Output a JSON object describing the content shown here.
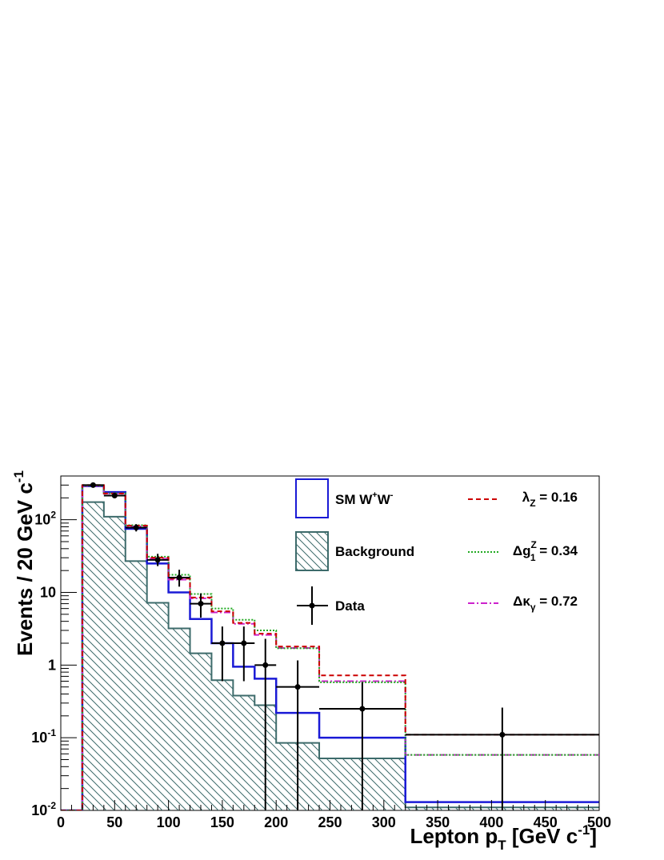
{
  "chart_data": {
    "type": "histogram",
    "xlabel": "Lepton p_T [GeV c^-1]",
    "xlabel_main": "Lepton p",
    "xlabel_sub": "T",
    "xlabel_unit": " [GeV c",
    "xlabel_unit_sup": "-1",
    "xlabel_close": "]",
    "ylabel": "Events / 20 GeV c^-1",
    "ylabel_main": "Events / 20 GeV c",
    "ylabel_sup": "-1",
    "yscale": "log",
    "xlim": [
      0,
      500
    ],
    "ylim": [
      0.01,
      400
    ],
    "x_ticks": [
      "0",
      "50",
      "100",
      "150",
      "200",
      "250",
      "300",
      "350",
      "400",
      "450",
      "500"
    ],
    "y_ticks": [
      {
        "value": 0.01,
        "base": "10",
        "exp": "-2"
      },
      {
        "value": 0.1,
        "base": "10",
        "exp": "-1"
      },
      {
        "value": 1,
        "base": "1",
        "exp": ""
      },
      {
        "value": 10,
        "base": "10",
        "exp": ""
      },
      {
        "value": 100,
        "base": "10",
        "exp": "2"
      }
    ],
    "bin_edges": [
      0,
      20,
      40,
      60,
      80,
      100,
      120,
      140,
      160,
      180,
      200,
      240,
      320,
      500
    ],
    "series": [
      {
        "name": "SM W+W-",
        "style": "solid",
        "color": "#1a1ad6",
        "values": [
          0.01,
          290,
          240,
          75,
          25,
          10,
          4.3,
          2.0,
          0.95,
          0.65,
          0.22,
          0.1,
          0.013
        ]
      },
      {
        "name": "Background",
        "style": "hatched",
        "color": "#3d6b6b",
        "values": [
          0.01,
          175,
          110,
          27,
          7.2,
          3.2,
          1.45,
          0.62,
          0.38,
          0.28,
          0.085,
          0.052,
          0.011
        ]
      },
      {
        "name": "λZ = 0.16",
        "style": "dashed",
        "color": "#cc0000",
        "values": [
          0.01,
          300,
          230,
          83,
          30,
          15.5,
          8.5,
          5.5,
          3.8,
          2.7,
          1.8,
          0.72,
          0.11
        ]
      },
      {
        "name": "Δg1Z = 0.34",
        "style": "dotted",
        "color": "#22aa22",
        "values": [
          0.01,
          295,
          232,
          84,
          31,
          17.5,
          9.5,
          6.0,
          4.2,
          3.0,
          1.7,
          0.58,
          0.058
        ]
      },
      {
        "name": "Δκγ = 0.72",
        "style": "dashdot",
        "color": "#cc22cc",
        "values": [
          0.01,
          293,
          228,
          81,
          29,
          15,
          8.3,
          5.3,
          3.7,
          2.6,
          1.72,
          0.6,
          0.058
        ]
      }
    ],
    "data_points": {
      "name": "Data",
      "points": [
        {
          "x": 30,
          "y": 300,
          "xerr": 10,
          "ylo": 283,
          "yhi": 317
        },
        {
          "x": 50,
          "y": 215,
          "xerr": 10,
          "ylo": 201,
          "yhi": 230
        },
        {
          "x": 70,
          "y": 78,
          "xerr": 10,
          "ylo": 69,
          "yhi": 87
        },
        {
          "x": 90,
          "y": 28,
          "xerr": 10,
          "ylo": 23,
          "yhi": 34
        },
        {
          "x": 110,
          "y": 16,
          "xerr": 10,
          "ylo": 12,
          "yhi": 20.5
        },
        {
          "x": 130,
          "y": 7,
          "xerr": 10,
          "ylo": 4.5,
          "yhi": 9.7
        },
        {
          "x": 150,
          "y": 2,
          "xerr": 10,
          "ylo": 0.6,
          "yhi": 3.4
        },
        {
          "x": 170,
          "y": 2,
          "xerr": 10,
          "ylo": 0.6,
          "yhi": 3.4
        },
        {
          "x": 190,
          "y": 1,
          "xerr": 10,
          "ylo": 0.01,
          "yhi": 2.3
        },
        {
          "x": 220,
          "y": 0.5,
          "xerr": 20,
          "ylo": 0.01,
          "yhi": 1.16
        },
        {
          "x": 280,
          "y": 0.25,
          "xerr": 40,
          "ylo": 0.01,
          "yhi": 0.58
        },
        {
          "x": 410,
          "y": 0.11,
          "xerr": 90,
          "ylo": 0.01,
          "yhi": 0.26
        }
      ]
    },
    "legend": {
      "sm": {
        "text": "SM W",
        "sup1": "+",
        "mid": "W",
        "sup2": "-"
      },
      "background": "Background",
      "data": "Data",
      "lambda": {
        "greek": "λ",
        "sub": "Z",
        "rest": " = 0.16"
      },
      "dg": {
        "greek": "Δg",
        "sup": "Z",
        "sub": "1",
        "rest": " = 0.34"
      },
      "dk": {
        "greek": "Δκ",
        "sub": "γ",
        "rest": " = 0.72"
      }
    }
  }
}
